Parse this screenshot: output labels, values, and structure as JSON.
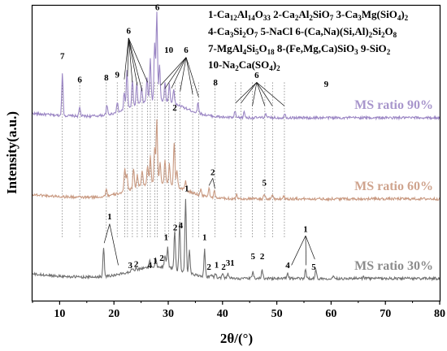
{
  "chart_data": {
    "type": "line",
    "title": "",
    "xlabel": "2θ/(°)",
    "ylabel": "Intensity(a.u.)",
    "xlim": [
      5,
      80
    ],
    "x_ticks": [
      10,
      20,
      30,
      40,
      50,
      60,
      70,
      80
    ],
    "y_ticks_shown": false,
    "grid": false,
    "legend_placement": "top-right",
    "legend": [
      {
        "id": "1",
        "name": "1-Ca12Al14O33"
      },
      {
        "id": "2",
        "name": "2-Ca2Al2SiO7"
      },
      {
        "id": "3",
        "name": "3-Ca3Mg(SiO4)2"
      },
      {
        "id": "4",
        "name": "4-Ca3Si2O7"
      },
      {
        "id": "5",
        "name": "5-NaCl"
      },
      {
        "id": "6",
        "name": "6-(Ca,Na)(Si,Al)2Si2O8"
      },
      {
        "id": "7",
        "name": "7-MgAl4Si5O18"
      },
      {
        "id": "8",
        "name": "8-(Fe,Mg,Ca)SiO3"
      },
      {
        "id": "9",
        "name": "9-SiO2"
      },
      {
        "id": "10",
        "name": "10-Na2Ca(SO4)2"
      }
    ],
    "legend_lines": [
      [
        {
          "t": "1-Ca"
        },
        {
          "t": "12",
          "sub": true
        },
        {
          "t": "Al"
        },
        {
          "t": "14",
          "sub": true
        },
        {
          "t": "O"
        },
        {
          "t": "33",
          "sub": true
        },
        {
          "t": " 2-Ca"
        },
        {
          "t": "2",
          "sub": true
        },
        {
          "t": "Al"
        },
        {
          "t": "2",
          "sub": true
        },
        {
          "t": "SiO"
        },
        {
          "t": "7",
          "sub": true
        },
        {
          "t": " 3-Ca"
        },
        {
          "t": "3",
          "sub": true
        },
        {
          "t": "Mg(SiO"
        },
        {
          "t": "4",
          "sub": true
        },
        {
          "t": ")"
        },
        {
          "t": "2",
          "sub": true
        }
      ],
      [
        {
          "t": "4-Ca"
        },
        {
          "t": "3",
          "sub": true
        },
        {
          "t": "Si"
        },
        {
          "t": "2",
          "sub": true
        },
        {
          "t": "O"
        },
        {
          "t": "7",
          "sub": true
        },
        {
          "t": " 5-NaCl 6-(Ca,Na)(Si,Al)"
        },
        {
          "t": "2",
          "sub": true
        },
        {
          "t": "Si"
        },
        {
          "t": "2",
          "sub": true
        },
        {
          "t": "O"
        },
        {
          "t": "8",
          "sub": true
        }
      ],
      [
        {
          "t": "7-MgAl"
        },
        {
          "t": "4",
          "sub": true
        },
        {
          "t": "Si"
        },
        {
          "t": "5",
          "sub": true
        },
        {
          "t": "O"
        },
        {
          "t": "18",
          "sub": true
        },
        {
          "t": " 8-(Fe,Mg,Ca)SiO"
        },
        {
          "t": "3",
          "sub": true
        },
        {
          "t": " 9-SiO"
        },
        {
          "t": "2",
          "sub": true
        }
      ],
      [
        {
          "t": "10-Na"
        },
        {
          "t": "2",
          "sub": true
        },
        {
          "t": "Ca(SO"
        },
        {
          "t": "4",
          "sub": true
        },
        {
          "t": ")"
        },
        {
          "t": "2",
          "sub": true
        }
      ]
    ],
    "series": [
      {
        "name": "MS ratio 90%",
        "color": "#9b86c4",
        "label_color": "#a896cc",
        "baseline": 0.62,
        "noise": 0.0045,
        "hump": 0.06,
        "peaks": [
          [
            10.5,
            0.14
          ],
          [
            13.7,
            0.03
          ],
          [
            18.7,
            0.03
          ],
          [
            20.6,
            0.035
          ],
          [
            21.9,
            0.06
          ],
          [
            22.4,
            0.13
          ],
          [
            23.4,
            0.09
          ],
          [
            24.2,
            0.07
          ],
          [
            25.1,
            0.05
          ],
          [
            26.1,
            0.08
          ],
          [
            26.7,
            0.14
          ],
          [
            27.5,
            0.19
          ],
          [
            27.9,
            0.3
          ],
          [
            28.4,
            0.12
          ],
          [
            29.4,
            0.06
          ],
          [
            30.2,
            0.06
          ],
          [
            31.0,
            0.05
          ],
          [
            35.5,
            0.035
          ],
          [
            42.3,
            0.02
          ],
          [
            44.0,
            0.02
          ],
          [
            47.9,
            0.015
          ],
          [
            51.5,
            0.015
          ]
        ]
      },
      {
        "name": "MS ratio 60%",
        "color": "#c99a82",
        "label_color": "#cfa48e",
        "baseline": 0.345,
        "noise": 0.0045,
        "hump": 0.055,
        "peaks": [
          [
            18.6,
            0.025
          ],
          [
            22.0,
            0.08
          ],
          [
            22.4,
            0.06
          ],
          [
            23.6,
            0.07
          ],
          [
            24.3,
            0.04
          ],
          [
            25.2,
            0.05
          ],
          [
            26.2,
            0.06
          ],
          [
            26.7,
            0.09
          ],
          [
            27.5,
            0.12
          ],
          [
            27.9,
            0.21
          ],
          [
            28.5,
            0.07
          ],
          [
            29.4,
            0.08
          ],
          [
            30.2,
            0.07
          ],
          [
            31.1,
            0.15
          ],
          [
            31.6,
            0.06
          ],
          [
            33.2,
            0.03
          ],
          [
            36.0,
            0.02
          ],
          [
            37.5,
            0.03
          ],
          [
            38.5,
            0.02
          ],
          [
            42.6,
            0.015
          ],
          [
            47.7,
            0.015
          ],
          [
            49.2,
            0.015
          ],
          [
            51.3,
            0.01
          ]
        ]
      },
      {
        "name": "MS ratio 30%",
        "color": "#707070",
        "label_color": "#8c8c8c",
        "baseline": 0.075,
        "noise": 0.0045,
        "hump": 0.04,
        "peaks": [
          [
            18.1,
            0.1
          ],
          [
            23.3,
            0.01
          ],
          [
            24.1,
            0.01
          ],
          [
            26.6,
            0.02
          ],
          [
            27.7,
            0.025
          ],
          [
            29.4,
            0.04
          ],
          [
            29.9,
            0.07
          ],
          [
            31.2,
            0.13
          ],
          [
            32.1,
            0.16
          ],
          [
            33.2,
            0.25
          ],
          [
            33.9,
            0.08
          ],
          [
            36.7,
            0.09
          ],
          [
            38.0,
            0.01
          ],
          [
            38.7,
            0.015
          ],
          [
            40.0,
            0.015
          ],
          [
            41.0,
            0.015
          ],
          [
            45.6,
            0.025
          ],
          [
            47.3,
            0.03
          ],
          [
            52.0,
            0.02
          ],
          [
            55.3,
            0.03
          ],
          [
            57.2,
            0.03
          ],
          [
            60.5,
            0.01
          ],
          [
            66.0,
            0.008
          ]
        ]
      }
    ],
    "annotations": [
      {
        "label": "7",
        "x": 10.5,
        "y": 0.82
      },
      {
        "label": "6",
        "x": 13.7,
        "y": 0.74
      },
      {
        "label": "8",
        "x": 18.6,
        "y": 0.746
      },
      {
        "label": "9",
        "x": 20.6,
        "y": 0.756
      },
      {
        "label": "6",
        "x": 28.0,
        "y": 0.985
      },
      {
        "label": "6",
        "x": 22.7,
        "y": 0.905
      },
      {
        "label": "10",
        "x": 30.1,
        "y": 0.84
      },
      {
        "label": "6",
        "x": 33.3,
        "y": 0.84
      },
      {
        "label": "8",
        "x": 38.7,
        "y": 0.73
      },
      {
        "label": "6",
        "x": 46.3,
        "y": 0.755
      },
      {
        "label": "9",
        "x": 59.1,
        "y": 0.725
      },
      {
        "label": "2",
        "x": 31.2,
        "y": 0.645
      },
      {
        "label": "2",
        "x": 38.2,
        "y": 0.425
      },
      {
        "label": "5",
        "x": 47.7,
        "y": 0.39
      },
      {
        "label": "1",
        "x": 19.2,
        "y": 0.275
      },
      {
        "label": "3",
        "x": 23.0,
        "y": 0.11
      },
      {
        "label": "2",
        "x": 24.1,
        "y": 0.115
      },
      {
        "label": "4",
        "x": 26.6,
        "y": 0.11
      },
      {
        "label": "1",
        "x": 27.6,
        "y": 0.125
      },
      {
        "label": "2",
        "x": 28.8,
        "y": 0.135
      },
      {
        "label": "1",
        "x": 29.6,
        "y": 0.205
      },
      {
        "label": "2",
        "x": 31.3,
        "y": 0.238
      },
      {
        "label": "4",
        "x": 32.3,
        "y": 0.245
      },
      {
        "label": "1",
        "x": 33.4,
        "y": 0.37
      },
      {
        "label": "1",
        "x": 36.7,
        "y": 0.205
      },
      {
        "label": "2",
        "x": 37.5,
        "y": 0.105
      },
      {
        "label": "1",
        "x": 38.9,
        "y": 0.112
      },
      {
        "label": "2",
        "x": 40.2,
        "y": 0.105
      },
      {
        "label": "3",
        "x": 41.0,
        "y": 0.118
      },
      {
        "label": "1",
        "x": 41.8,
        "y": 0.118
      },
      {
        "label": "5",
        "x": 45.6,
        "y": 0.14
      },
      {
        "label": "2",
        "x": 47.3,
        "y": 0.14
      },
      {
        "label": "4",
        "x": 52.0,
        "y": 0.11
      },
      {
        "label": "1",
        "x": 55.3,
        "y": 0.233
      },
      {
        "label": "5",
        "x": 56.8,
        "y": 0.105
      }
    ],
    "pointer_lines": [
      [
        22.7,
        0.89,
        21.9,
        0.75
      ],
      [
        22.7,
        0.89,
        22.5,
        0.76
      ],
      [
        22.7,
        0.89,
        23.4,
        0.74
      ],
      [
        22.7,
        0.89,
        24.3,
        0.73
      ],
      [
        22.7,
        0.89,
        25.2,
        0.71
      ],
      [
        22.7,
        0.89,
        26.2,
        0.74
      ],
      [
        33.3,
        0.825,
        28.6,
        0.73
      ],
      [
        33.3,
        0.825,
        29.4,
        0.72
      ],
      [
        33.3,
        0.825,
        30.6,
        0.72
      ],
      [
        33.3,
        0.825,
        32.2,
        0.71
      ],
      [
        33.3,
        0.825,
        34.5,
        0.7
      ],
      [
        33.3,
        0.825,
        35.6,
        0.69
      ],
      [
        46.3,
        0.74,
        42.4,
        0.67
      ],
      [
        46.3,
        0.74,
        43.4,
        0.67
      ],
      [
        46.3,
        0.74,
        45.5,
        0.66
      ],
      [
        46.3,
        0.74,
        47.8,
        0.66
      ],
      [
        46.3,
        0.74,
        49.2,
        0.66
      ],
      [
        46.3,
        0.74,
        51.4,
        0.66
      ],
      [
        38.2,
        0.415,
        37.5,
        0.39
      ],
      [
        38.2,
        0.415,
        38.6,
        0.38
      ],
      [
        19.2,
        0.26,
        18.2,
        0.195
      ],
      [
        19.2,
        0.26,
        20.8,
        0.12
      ],
      [
        55.3,
        0.22,
        52.7,
        0.12
      ],
      [
        55.3,
        0.22,
        55.4,
        0.12
      ],
      [
        55.3,
        0.22,
        57.0,
        0.14
      ]
    ],
    "reference_lines_x": [
      10.5,
      13.7,
      18.6,
      20.6,
      22.0,
      22.5,
      23.4,
      24.3,
      25.2,
      26.2,
      26.7,
      27.5,
      28.0,
      29.4,
      30.1,
      31.3,
      32.2,
      34.5,
      35.6,
      38.6,
      42.4,
      43.4,
      45.5,
      47.8,
      49.2,
      51.4
    ]
  }
}
